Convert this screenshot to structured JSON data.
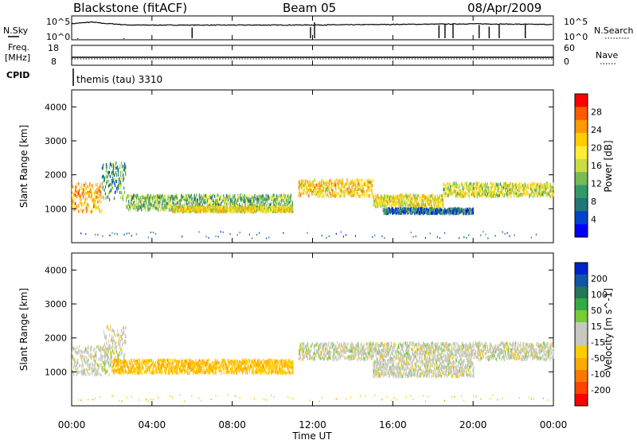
{
  "header": {
    "title": "Blackstone (fitACF)",
    "beam": "Beam 05",
    "date": "08/Apr/2009"
  },
  "top_panel_labels": {
    "nsky": "N.Sky",
    "nsearch": "N.Search",
    "nsky_ticks": [
      "10^5",
      "10^0"
    ],
    "nsearch_ticks": [
      "10^5",
      "10^0"
    ],
    "freq_line1": "Freq.",
    "freq_line2": "[MHz]",
    "freq_ticks": [
      "18",
      "8"
    ],
    "nave": "Nave",
    "nave_ticks": [
      "60",
      "0"
    ],
    "cpid": "CPID",
    "cpid_value": "themis (tau) 3310"
  },
  "power_colorbar": {
    "label": "Power [dB]",
    "ticks": [
      "28",
      "24",
      "20",
      "16",
      "12",
      "8",
      "4"
    ],
    "colors": [
      "#ff0000",
      "#ff5a00",
      "#ff9900",
      "#ffcc00",
      "#ffee33",
      "#ccdd44",
      "#77bb55",
      "#339966",
      "#227777",
      "#0044cc",
      "#0000ff"
    ]
  },
  "velocity_colorbar": {
    "label": "Velocity [m s^-1]",
    "ticks": [
      "200",
      "100",
      "50",
      "15",
      "-15",
      "-50",
      "-100",
      "-200"
    ],
    "colors": [
      "#0022cc",
      "#1155aa",
      "#227755",
      "#33aa44",
      "#77cc33",
      "#c8c8c0",
      "#c8c8c0",
      "#ffcc00",
      "#ffaa00",
      "#ff7700",
      "#ff4400",
      "#ff0000"
    ]
  },
  "chart_data": [
    {
      "type": "line",
      "title": "N.Sky / N.Search",
      "ylabel": "N.Sky",
      "y2label": "N.Search",
      "yscale": "log",
      "ylim": [
        1,
        100000
      ],
      "xlim": [
        0,
        24
      ],
      "x_tick_labels": [
        "00:00",
        "04:00",
        "08:00",
        "12:00",
        "16:00",
        "20:00",
        "00:00"
      ],
      "series": [
        {
          "name": "N.Sky",
          "x": [
            0,
            0.5,
            1,
            1.5,
            2,
            2.5,
            3,
            6,
            9,
            12,
            14,
            18,
            20,
            22,
            24
          ],
          "values": [
            3000,
            5000,
            8000,
            4000,
            3000,
            2000,
            1500,
            1500,
            1500,
            1600,
            1800,
            2500,
            3000,
            2500,
            2000
          ]
        }
      ]
    },
    {
      "type": "line",
      "ylabel": "Freq. [MHz]",
      "y2label": "Nave",
      "ylim": [
        8,
        18
      ],
      "y2lim": [
        0,
        60
      ],
      "series": [
        {
          "name": "Freq.",
          "x": [
            0,
            24
          ],
          "values": [
            10.5,
            10.5
          ]
        },
        {
          "name": "Nave",
          "x": [
            0,
            24
          ],
          "values": [
            12,
            12
          ]
        }
      ]
    },
    {
      "type": "heatmap",
      "quantity": "Power",
      "xlabel": "Time UT",
      "ylabel": "Slant Range [km]",
      "xlim": [
        0,
        24
      ],
      "ylim": [
        0,
        4500
      ],
      "y_ticks": [
        1000,
        2000,
        3000,
        4000
      ],
      "colorbar_label": "Power [dB]",
      "colorbar_range": [
        0,
        30
      ],
      "bands": [
        {
          "t0": 0.0,
          "t1": 1.5,
          "r0": 950,
          "r1": 1800,
          "level": 22
        },
        {
          "t0": 1.5,
          "t1": 2.7,
          "r0": 1300,
          "r1": 2400,
          "level": 10
        },
        {
          "t0": 2.7,
          "t1": 11.0,
          "r0": 1000,
          "r1": 1450,
          "level": 12
        },
        {
          "t0": 5.0,
          "t1": 11.0,
          "r0": 950,
          "r1": 1100,
          "level": 18
        },
        {
          "t0": 11.3,
          "t1": 15.0,
          "r0": 1400,
          "r1": 1900,
          "level": 20
        },
        {
          "t0": 15.0,
          "t1": 18.5,
          "r0": 1100,
          "r1": 1450,
          "level": 18
        },
        {
          "t0": 15.5,
          "t1": 20.0,
          "r0": 900,
          "r1": 1050,
          "level": 6
        },
        {
          "t0": 18.5,
          "t1": 24.0,
          "r0": 1400,
          "r1": 1800,
          "level": 16
        }
      ]
    },
    {
      "type": "heatmap",
      "quantity": "Velocity",
      "xlabel": "Time UT",
      "ylabel": "Slant Range [km]",
      "xlim": [
        0,
        24
      ],
      "ylim": [
        0,
        4500
      ],
      "y_ticks": [
        1000,
        2000,
        3000,
        4000
      ],
      "colorbar_label": "Velocity [m s^-1]",
      "colorbar_range": [
        -200,
        200
      ],
      "bands": [
        {
          "t0": 0.0,
          "t1": 2.0,
          "r0": 950,
          "r1": 1800,
          "level": 0
        },
        {
          "t0": 1.5,
          "t1": 2.7,
          "r0": 1300,
          "r1": 2400,
          "level": 0
        },
        {
          "t0": 2.0,
          "t1": 11.0,
          "r0": 1000,
          "r1": 1400,
          "level": -40
        },
        {
          "t0": 11.3,
          "t1": 24.0,
          "r0": 1400,
          "r1": 1900,
          "level": 0
        },
        {
          "t0": 15.0,
          "t1": 20.0,
          "r0": 900,
          "r1": 1400,
          "level": 0
        }
      ]
    }
  ]
}
